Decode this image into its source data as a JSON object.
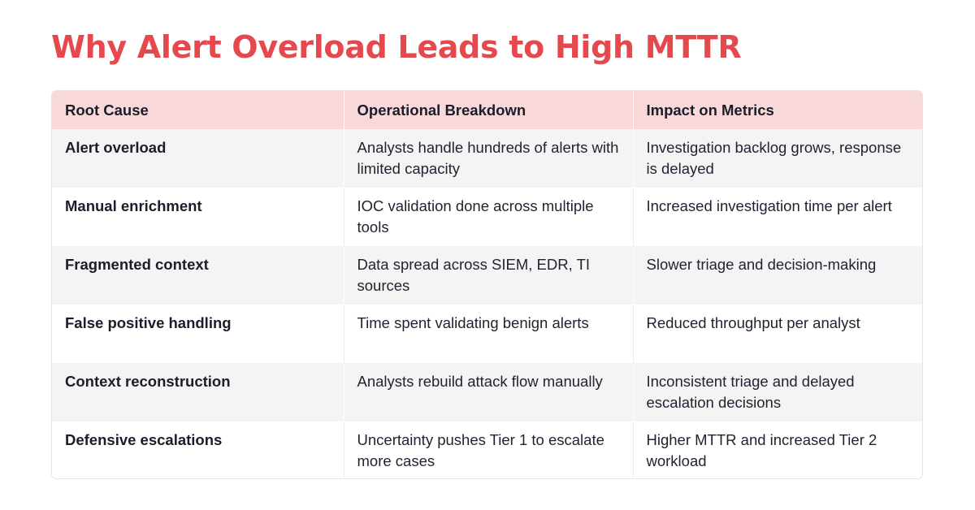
{
  "title": "Why Alert Overload Leads to High MTTR",
  "table": {
    "headers": [
      "Root Cause",
      "Operational Breakdown",
      "Impact on Metrics"
    ],
    "rows": [
      {
        "cause": "Alert overload",
        "breakdown": "Analysts handle hundreds of alerts with limited capacity",
        "impact": "Investigation backlog grows, response is delayed"
      },
      {
        "cause": "Manual enrichment",
        "breakdown": "IOC validation done across multiple tools",
        "impact": "Increased investigation time per alert"
      },
      {
        "cause": "Fragmented context",
        "breakdown": "Data spread across SIEM, EDR, TI sources",
        "impact": "Slower triage and decision-making"
      },
      {
        "cause": "False positive handling",
        "breakdown": "Time spent validating benign alerts",
        "impact": "Reduced throughput per analyst"
      },
      {
        "cause": "Context reconstruction",
        "breakdown": "Analysts rebuild attack flow manually",
        "impact": "Inconsistent triage and delayed escalation decisions"
      },
      {
        "cause": "Defensive escalations",
        "breakdown": "Uncertainty pushes Tier 1 to escalate more cases",
        "impact": "Higher MTTR and increased Tier 2 workload"
      }
    ]
  },
  "colors": {
    "title": "#e5484d",
    "header_background": "#f8d8d9",
    "row_stripe": "#f4f4f5",
    "text": "#1f2230"
  }
}
